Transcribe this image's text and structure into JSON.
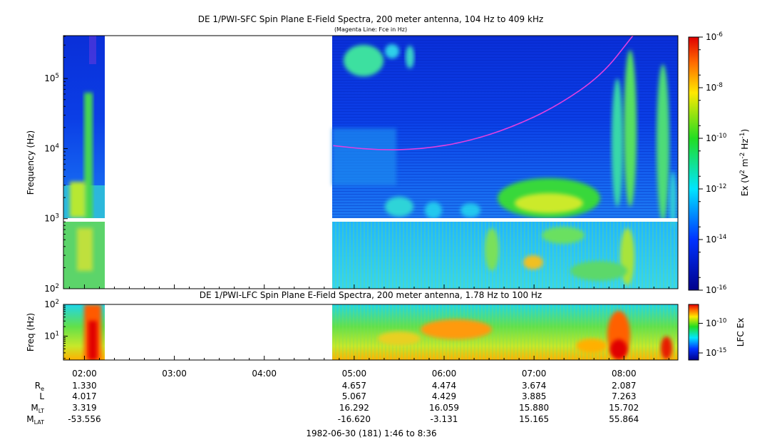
{
  "chart_data": [
    {
      "type": "heatmap",
      "title": "DE 1/PWI-SFC  Spin Plane E-Field Spectra, 200 meter antenna, 104 Hz to 409 kHz",
      "subtitle": "(Magenta Line: Fce in Hz)",
      "ylabel": "Frequency (Hz)",
      "y_scale": "log",
      "ylim": [
        100,
        409000
      ],
      "y_ticks": [
        "10^2",
        "10^3",
        "10^4",
        "10^5"
      ],
      "x_range": [
        "01:46",
        "08:36"
      ],
      "data_gap": [
        "02:14",
        "04:46"
      ],
      "colorbar": {
        "label": "Ex (V^2 m^-2 Hz^-1)",
        "label_parts": [
          "Ex (V",
          "2",
          " m",
          "-2",
          " Hz",
          "-1",
          ")"
        ],
        "scale": "log",
        "range": [
          "1e-16",
          "1e-6"
        ],
        "ticks": [
          {
            "base": "10",
            "exp": "-6"
          },
          {
            "base": "10",
            "exp": "-8"
          },
          {
            "base": "10",
            "exp": "-10"
          },
          {
            "base": "10",
            "exp": "-12"
          },
          {
            "base": "10",
            "exp": "-14"
          },
          {
            "base": "10",
            "exp": "-16"
          }
        ]
      },
      "fce_line": {
        "color": "#e040e0",
        "points": [
          {
            "time": "04:46",
            "freq": 11000
          },
          {
            "time": "05:15",
            "freq": 9500
          },
          {
            "time": "05:45",
            "freq": 9800
          },
          {
            "time": "06:15",
            "freq": 12500
          },
          {
            "time": "06:45",
            "freq": 20000
          },
          {
            "time": "07:15",
            "freq": 40000
          },
          {
            "time": "07:45",
            "freq": 110000
          },
          {
            "time": "08:06",
            "freq": 409000
          }
        ]
      }
    },
    {
      "type": "heatmap",
      "title": "DE 1/PWI-LFC  Spin Plane E-Field Spectra, 200 meter antenna, 1.78 Hz to 100 Hz",
      "ylabel": "Freq (Hz)",
      "y_scale": "log",
      "ylim": [
        1.78,
        100
      ],
      "y_ticks": [
        "10^1",
        "10^2"
      ],
      "data_gap": [
        "02:14",
        "04:46"
      ],
      "colorbar": {
        "label": "LFC Ex",
        "scale": "log",
        "ticks": [
          {
            "base": "10",
            "exp": "-10"
          },
          {
            "base": "10",
            "exp": "-15"
          }
        ]
      }
    }
  ],
  "x_axis": {
    "tick_labels": [
      "02:00",
      "03:00",
      "04:00",
      "05:00",
      "06:00",
      "07:00",
      "08:00"
    ],
    "ephemeris": {
      "row_labels": [
        {
          "base": "R",
          "sub": "e"
        },
        {
          "base": "L",
          "sub": ""
        },
        {
          "base": "M",
          "sub": "LT"
        },
        {
          "base": "M",
          "sub": "LAT"
        }
      ],
      "columns": [
        {
          "time": "02:00",
          "values": [
            "1.330",
            "4.017",
            "3.319",
            "-53.556"
          ]
        },
        {
          "time": "05:00",
          "values": [
            "4.657",
            "5.067",
            "16.292",
            "-16.620"
          ]
        },
        {
          "time": "06:00",
          "values": [
            "4.474",
            "4.429",
            "16.059",
            "-3.131"
          ]
        },
        {
          "time": "07:00",
          "values": [
            "3.674",
            "3.885",
            "15.880",
            "15.165"
          ]
        },
        {
          "time": "08:00",
          "values": [
            "2.087",
            "7.263",
            "15.702",
            "55.864"
          ]
        }
      ]
    },
    "footer": "1982-06-30 (181) 1:46 to 8:36"
  }
}
